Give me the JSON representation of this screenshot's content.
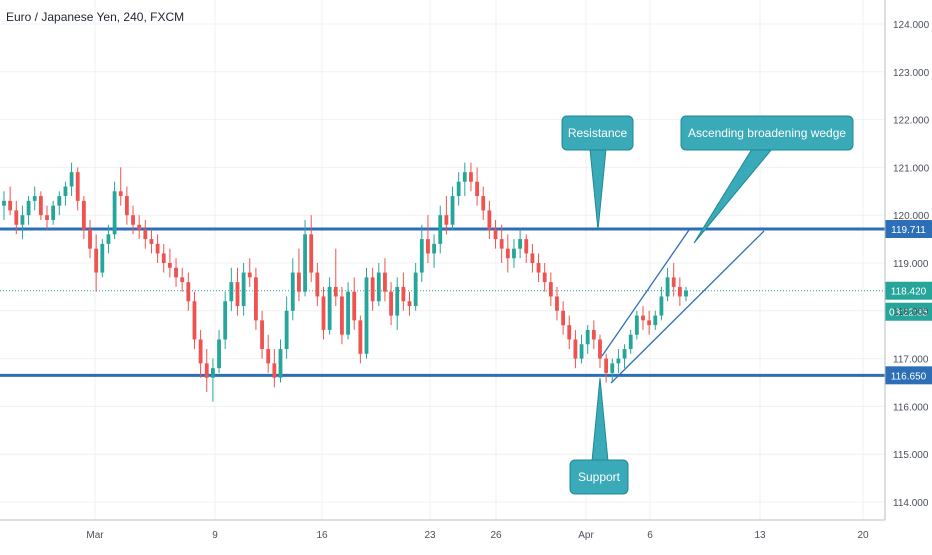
{
  "chart_data": {
    "type": "candlestick",
    "title": "Euro / Japanese Yen, 240, FXCM",
    "ylim": [
      113.7,
      124.3
    ],
    "y_ticks": [
      "114.000",
      "115.000",
      "116.000",
      "117.000",
      "118.000",
      "119.000",
      "120.000",
      "121.000",
      "122.000",
      "123.000",
      "124.000"
    ],
    "x_labels": [
      "Mar",
      "9",
      "16",
      "23",
      "26",
      "Apr",
      "6",
      "13",
      "20"
    ],
    "levels": [
      {
        "name": "resistance",
        "value": 119.711,
        "label": "119.711",
        "color": "#2c6fb7"
      },
      {
        "name": "support",
        "value": 116.65,
        "label": "116.650",
        "color": "#2c6fb7"
      }
    ],
    "current_price": {
      "value": 118.42,
      "label": "118.420",
      "timer": "03:22:35",
      "color": "#26a69a"
    },
    "annotations": [
      {
        "name": "resistance-callout",
        "text": "Resistance"
      },
      {
        "name": "wedge-callout",
        "text": "Ascending broadening wedge"
      },
      {
        "name": "support-callout",
        "text": "Support"
      }
    ],
    "wedge": {
      "upper": [
        [
          117.0,
          "Apr 2"
        ],
        [
          119.7,
          "Apr 10"
        ]
      ],
      "lower": [
        [
          116.45,
          "Apr 3"
        ],
        [
          119.6,
          "Apr 12"
        ]
      ]
    },
    "colors": {
      "up": "#26a69a",
      "down": "#ef5350",
      "grid": "#edf0f4",
      "callout": "#3aa9b8",
      "callout_border": "#1f8996"
    },
    "candles_ohlc": [
      [
        120.2,
        120.5,
        119.9,
        120.3
      ],
      [
        120.3,
        120.6,
        120.0,
        120.1
      ],
      [
        120.1,
        120.3,
        119.6,
        119.8
      ],
      [
        119.8,
        120.2,
        119.5,
        120.0
      ],
      [
        120.0,
        120.4,
        119.8,
        120.3
      ],
      [
        120.3,
        120.6,
        120.1,
        120.4
      ],
      [
        120.4,
        120.5,
        119.9,
        120.0
      ],
      [
        120.0,
        120.2,
        119.7,
        119.9
      ],
      [
        119.9,
        120.3,
        119.8,
        120.2
      ],
      [
        120.2,
        120.5,
        120.0,
        120.4
      ],
      [
        120.4,
        120.7,
        120.2,
        120.6
      ],
      [
        120.6,
        121.1,
        120.4,
        120.9
      ],
      [
        120.9,
        121.0,
        120.1,
        120.3
      ],
      [
        120.3,
        120.4,
        119.5,
        119.7
      ],
      [
        119.7,
        119.9,
        119.1,
        119.3
      ],
      [
        119.3,
        119.6,
        118.4,
        118.8
      ],
      [
        118.8,
        119.5,
        118.7,
        119.4
      ],
      [
        119.4,
        119.8,
        119.2,
        119.6
      ],
      [
        119.6,
        120.7,
        119.5,
        120.5
      ],
      [
        120.5,
        121.0,
        120.2,
        120.4
      ],
      [
        120.4,
        120.6,
        119.8,
        120.0
      ],
      [
        120.0,
        120.2,
        119.6,
        119.8
      ],
      [
        119.8,
        120.0,
        119.5,
        119.7
      ],
      [
        119.7,
        119.9,
        119.3,
        119.5
      ],
      [
        119.5,
        119.7,
        119.2,
        119.4
      ],
      [
        119.4,
        119.6,
        119.0,
        119.2
      ],
      [
        119.2,
        119.4,
        118.8,
        119.0
      ],
      [
        119.0,
        119.3,
        118.7,
        118.9
      ],
      [
        118.9,
        119.1,
        118.5,
        118.7
      ],
      [
        118.7,
        118.9,
        118.4,
        118.6
      ],
      [
        118.6,
        118.8,
        118.0,
        118.2
      ],
      [
        118.2,
        118.4,
        117.2,
        117.4
      ],
      [
        117.4,
        117.6,
        116.6,
        116.9
      ],
      [
        116.9,
        117.2,
        116.3,
        116.6
      ],
      [
        116.6,
        117.0,
        116.1,
        116.8
      ],
      [
        116.8,
        117.6,
        116.7,
        117.4
      ],
      [
        117.4,
        118.4,
        117.2,
        118.2
      ],
      [
        118.2,
        118.9,
        118.0,
        118.6
      ],
      [
        118.6,
        118.9,
        117.9,
        118.1
      ],
      [
        118.1,
        119.0,
        117.9,
        118.8
      ],
      [
        118.8,
        119.1,
        118.5,
        118.7
      ],
      [
        118.7,
        118.9,
        117.6,
        117.8
      ],
      [
        117.8,
        118.0,
        117.0,
        117.2
      ],
      [
        117.2,
        117.5,
        116.7,
        116.9
      ],
      [
        116.9,
        117.2,
        116.4,
        116.6
      ],
      [
        116.6,
        117.4,
        116.5,
        117.2
      ],
      [
        117.2,
        118.3,
        117.0,
        118.0
      ],
      [
        118.0,
        119.1,
        117.8,
        118.8
      ],
      [
        118.8,
        119.3,
        118.2,
        118.4
      ],
      [
        118.4,
        119.9,
        118.3,
        119.6
      ],
      [
        119.6,
        120.0,
        118.6,
        118.8
      ],
      [
        118.8,
        119.0,
        118.1,
        118.3
      ],
      [
        118.3,
        118.5,
        117.4,
        117.6
      ],
      [
        117.6,
        118.7,
        117.5,
        118.5
      ],
      [
        118.5,
        119.3,
        118.1,
        118.3
      ],
      [
        118.3,
        118.5,
        117.3,
        117.5
      ],
      [
        117.5,
        118.6,
        117.4,
        118.4
      ],
      [
        118.4,
        118.7,
        117.6,
        117.8
      ],
      [
        117.8,
        117.9,
        116.9,
        117.1
      ],
      [
        117.1,
        118.9,
        117.0,
        118.7
      ],
      [
        118.7,
        118.9,
        118.0,
        118.2
      ],
      [
        118.2,
        119.0,
        118.1,
        118.8
      ],
      [
        118.8,
        119.1,
        118.2,
        118.4
      ],
      [
        118.4,
        118.6,
        117.7,
        117.9
      ],
      [
        117.9,
        118.7,
        117.6,
        118.5
      ],
      [
        118.5,
        118.8,
        118.0,
        118.2
      ],
      [
        118.2,
        118.4,
        117.9,
        118.1
      ],
      [
        118.1,
        119.0,
        118.0,
        118.8
      ],
      [
        118.8,
        119.8,
        118.6,
        119.5
      ],
      [
        119.5,
        120.0,
        119.0,
        119.2
      ],
      [
        119.2,
        119.6,
        118.9,
        119.4
      ],
      [
        119.4,
        120.2,
        119.2,
        120.0
      ],
      [
        120.0,
        120.4,
        119.6,
        119.8
      ],
      [
        119.8,
        120.6,
        119.7,
        120.4
      ],
      [
        120.4,
        120.9,
        120.2,
        120.7
      ],
      [
        120.7,
        121.1,
        120.4,
        120.9
      ],
      [
        120.9,
        121.1,
        120.5,
        120.7
      ],
      [
        120.7,
        121.0,
        120.2,
        120.4
      ],
      [
        120.4,
        120.6,
        119.9,
        120.1
      ],
      [
        120.1,
        120.3,
        119.5,
        119.7
      ],
      [
        119.7,
        119.9,
        119.3,
        119.5
      ],
      [
        119.5,
        119.8,
        119.0,
        119.3
      ],
      [
        119.3,
        119.6,
        118.8,
        119.1
      ],
      [
        119.1,
        119.5,
        118.9,
        119.3
      ],
      [
        119.3,
        119.7,
        119.1,
        119.5
      ],
      [
        119.5,
        119.6,
        119.0,
        119.2
      ],
      [
        119.2,
        119.4,
        118.8,
        119.0
      ],
      [
        119.0,
        119.2,
        118.6,
        118.8
      ],
      [
        118.8,
        119.0,
        118.4,
        118.6
      ],
      [
        118.6,
        118.8,
        118.1,
        118.3
      ],
      [
        118.3,
        118.5,
        117.8,
        118.0
      ],
      [
        118.0,
        118.2,
        117.5,
        117.7
      ],
      [
        117.7,
        117.9,
        117.2,
        117.4
      ],
      [
        117.4,
        117.6,
        116.8,
        117.0
      ],
      [
        117.0,
        117.5,
        116.9,
        117.3
      ],
      [
        117.3,
        117.7,
        117.1,
        117.6
      ],
      [
        117.6,
        117.8,
        117.2,
        117.4
      ],
      [
        117.4,
        117.5,
        116.8,
        117.0
      ],
      [
        117.0,
        117.1,
        116.5,
        116.7
      ],
      [
        116.7,
        117.0,
        116.5,
        116.9
      ],
      [
        116.9,
        117.2,
        116.7,
        117.0
      ],
      [
        117.0,
        117.3,
        116.8,
        117.2
      ],
      [
        117.2,
        117.6,
        117.1,
        117.5
      ],
      [
        117.5,
        118.0,
        117.4,
        117.9
      ],
      [
        117.9,
        118.1,
        117.6,
        117.8
      ],
      [
        117.8,
        118.0,
        117.5,
        117.7
      ],
      [
        117.7,
        118.0,
        117.6,
        117.9
      ],
      [
        117.9,
        118.5,
        117.8,
        118.3
      ],
      [
        118.3,
        118.9,
        118.2,
        118.7
      ],
      [
        118.7,
        119.0,
        118.3,
        118.5
      ],
      [
        118.5,
        118.7,
        118.1,
        118.3
      ],
      [
        118.3,
        118.5,
        118.2,
        118.42
      ]
    ]
  }
}
